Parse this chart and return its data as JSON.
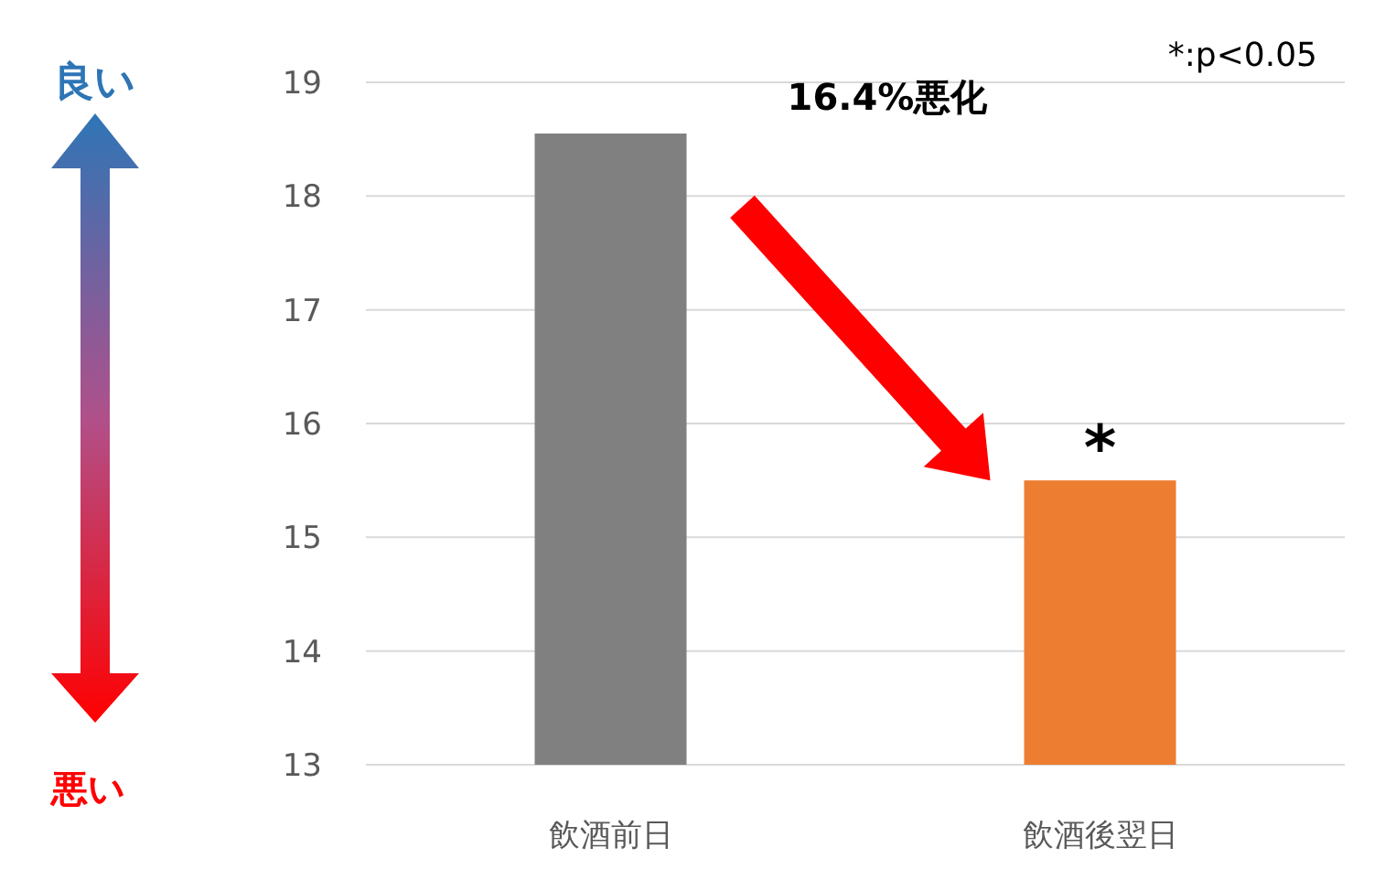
{
  "chart_data": {
    "type": "bar",
    "categories": [
      "飲酒前日",
      "飲酒後翌日"
    ],
    "values": [
      18.55,
      15.5
    ],
    "colors": [
      "#808080",
      "#ed7d31"
    ],
    "ylim": [
      13,
      19
    ],
    "yticks": [
      13,
      14,
      15,
      16,
      17,
      18,
      19
    ],
    "grid": "y",
    "annotations": [
      "16.4%悪化",
      "*:p<0.05",
      {
        "text": "*",
        "x": "飲酒後翌日",
        "y": 15.5
      },
      "良い",
      "悪い"
    ]
  }
}
